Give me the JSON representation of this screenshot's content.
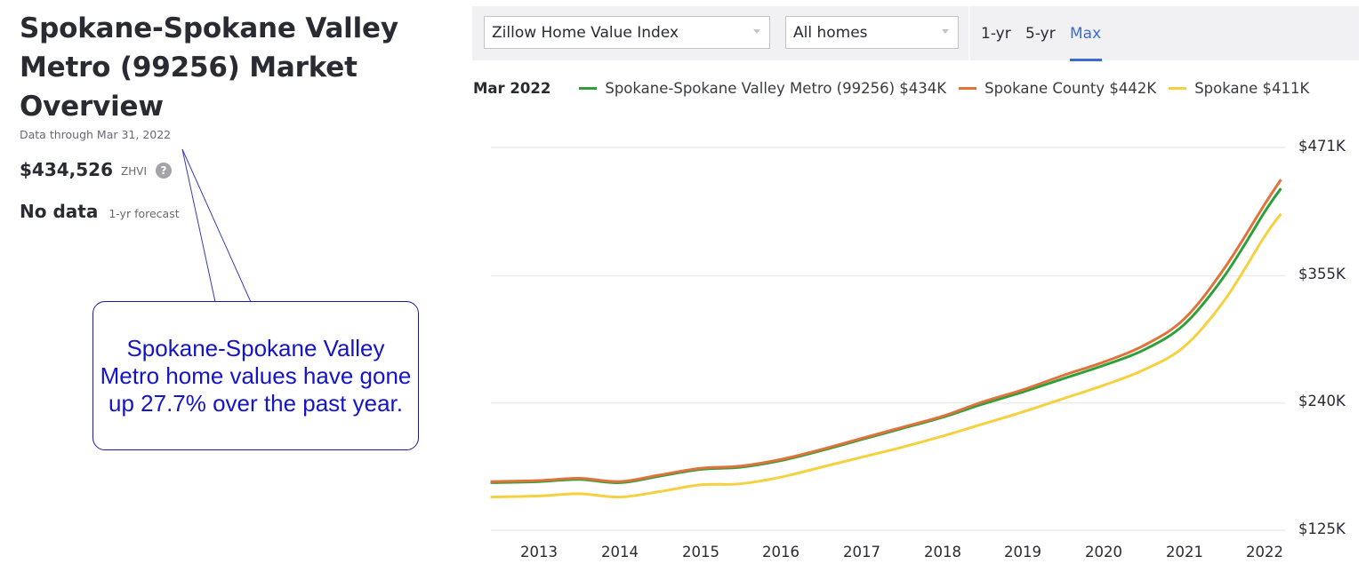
{
  "overview": {
    "title": "Spokane-Spokane Valley Metro (99256) Market Overview",
    "data_through": "Data through Mar 31, 2022",
    "zhvi_value": "$434,526",
    "zhvi_label": "ZHVI",
    "help_icon": "?",
    "forecast_value": "No data",
    "forecast_label": "1-yr forecast"
  },
  "callout": {
    "text": "Spokane-Spokane Valley Metro home values have gone up 27.7% over the past year."
  },
  "toolbar": {
    "metric_select": "Zillow Home Value Index",
    "home_type_select": "All homes",
    "range_tabs": [
      {
        "label": "1-yr",
        "active": false
      },
      {
        "label": "5-yr",
        "active": false
      },
      {
        "label": "Max",
        "active": true
      }
    ]
  },
  "legend": {
    "date": "Mar 2022",
    "items": [
      {
        "label": "Spokane-Spokane Valley Metro (99256) $434K",
        "color": "#2ea03a"
      },
      {
        "label": "Spokane County $442K",
        "color": "#e0733c"
      },
      {
        "label": "Spokane $411K",
        "color": "#f5d03f"
      }
    ]
  },
  "chart_data": {
    "type": "line",
    "title": "Zillow Home Value Index — All homes (Max)",
    "xlabel": "",
    "ylabel": "",
    "x_ticks": [
      "2013",
      "2014",
      "2015",
      "2016",
      "2017",
      "2018",
      "2019",
      "2020",
      "2021",
      "2022"
    ],
    "y_ticks": [
      "$125K",
      "$240K",
      "$355K",
      "$471K"
    ],
    "ylim": [
      125,
      471
    ],
    "grid": true,
    "legend_position": "top",
    "x": [
      2012.4,
      2013.0,
      2013.5,
      2014.0,
      2014.5,
      2015.0,
      2015.5,
      2016.0,
      2016.5,
      2017.0,
      2017.5,
      2018.0,
      2018.5,
      2019.0,
      2019.5,
      2020.0,
      2020.5,
      2021.0,
      2021.5,
      2022.0,
      2022.2
    ],
    "series": [
      {
        "name": "Spokane-Spokane Valley Metro (99256)",
        "color": "#2ea03a",
        "values": [
          168,
          169,
          171,
          168,
          174,
          180,
          182,
          188,
          197,
          207,
          217,
          227,
          239,
          250,
          262,
          274,
          288,
          311,
          355,
          413,
          434
        ]
      },
      {
        "name": "Spokane County",
        "color": "#e0733c",
        "values": [
          169,
          170,
          172,
          169,
          175,
          181,
          183,
          189,
          198,
          208,
          218,
          228,
          241,
          252,
          265,
          277,
          292,
          316,
          362,
          420,
          442
        ]
      },
      {
        "name": "Spokane",
        "color": "#f5d03f",
        "values": [
          155,
          156,
          158,
          155,
          160,
          166,
          167,
          173,
          182,
          191,
          200,
          210,
          221,
          232,
          244,
          256,
          270,
          291,
          333,
          391,
          411
        ]
      }
    ]
  }
}
